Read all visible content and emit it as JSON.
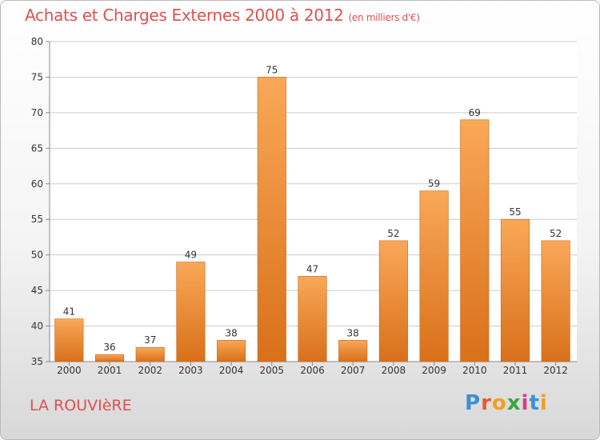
{
  "chart_data": {
    "type": "bar",
    "title": "Achats et Charges Externes 2000 à 2012",
    "subtitle": "(en milliers d'€)",
    "categories": [
      "2000",
      "2001",
      "2002",
      "2003",
      "2004",
      "2005",
      "2006",
      "2007",
      "2008",
      "2009",
      "2010",
      "2011",
      "2012"
    ],
    "values": [
      41,
      36,
      37,
      49,
      38,
      75,
      47,
      38,
      52,
      59,
      69,
      55,
      52
    ],
    "ylim": [
      35,
      80
    ],
    "yticks": [
      35,
      40,
      45,
      50,
      55,
      60,
      65,
      70,
      75,
      80
    ],
    "grid": true,
    "bar_color_light": "#f9a858",
    "bar_color_dark": "#d9701a"
  },
  "footer": {
    "place": "LA ROUVIèRE",
    "logo_letters": [
      "P",
      "r",
      "o",
      "x",
      "i",
      "t",
      "i"
    ],
    "logo_colors": [
      "#3a8fd8",
      "#e65a2a",
      "#f0a020",
      "#3aa63a",
      "#d83a8c",
      "#3a8fd8",
      "#f0a020"
    ]
  }
}
